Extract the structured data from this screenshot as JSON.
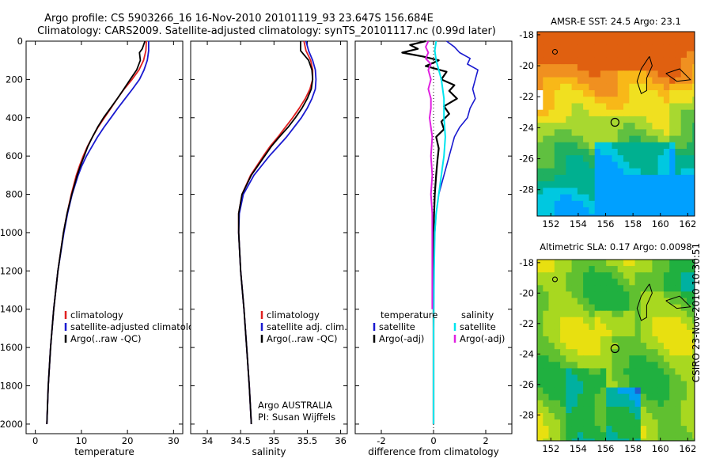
{
  "title_line1": "Argo profile: CS 5903266_16 16-Nov-2010 20101119_93 23.647S 156.684E",
  "title_line2": "Climatology: CARS2009. Satellite-adjusted climatology: synTS_20101117.nc (0.99d later)",
  "side_stamp": "CSIRO 23-Nov-2010 10:30:51",
  "colors": {
    "climatology": "#e02020",
    "satellite": "#1a1ad0",
    "argo": "#000000",
    "satellite_diff": "#00e5ee",
    "argo_diff": "#e020e0",
    "land": "#f6c08c",
    "coast": "#000000"
  },
  "chart_data": [
    {
      "type": "line",
      "name": "temperature-panel",
      "xlabel": "temperature",
      "ylabel": "",
      "xlim": [
        -2,
        32
      ],
      "ylim": [
        2050,
        0
      ],
      "xticks": [
        0,
        10,
        20,
        30
      ],
      "yticks": [
        0,
        200,
        400,
        600,
        800,
        1000,
        1200,
        1400,
        1600,
        1800,
        2000
      ],
      "legend": [
        "climatology",
        "satellite-adjusted climatology",
        "Argo(..raw -QC)"
      ],
      "legend_position": "lower-middle",
      "series": [
        {
          "name": "climatology",
          "color_key": "climatology",
          "depth": [
            0,
            50,
            100,
            150,
            200,
            250,
            300,
            350,
            400,
            450,
            500,
            550,
            600,
            650,
            700,
            800,
            900,
            1000,
            1200,
            1400,
            1600,
            1800,
            2000
          ],
          "values": [
            24.1,
            24.0,
            23.5,
            22.5,
            21.0,
            19.3,
            17.8,
            16.4,
            15.0,
            13.6,
            12.4,
            11.3,
            10.4,
            9.6,
            8.9,
            7.8,
            6.9,
            6.1,
            4.9,
            4.0,
            3.3,
            2.8,
            2.5
          ]
        },
        {
          "name": "satellite-adjusted climatology",
          "color_key": "satellite",
          "depth": [
            0,
            50,
            100,
            150,
            200,
            250,
            300,
            350,
            400,
            450,
            500,
            550,
            600,
            650,
            700,
            800,
            900,
            1000,
            1200,
            1400,
            1600,
            1800,
            2000
          ],
          "values": [
            24.6,
            24.6,
            24.3,
            23.6,
            22.6,
            21.1,
            19.5,
            17.9,
            16.4,
            14.9,
            13.5,
            12.3,
            11.1,
            10.1,
            9.3,
            8.0,
            7.0,
            6.2,
            4.9,
            4.0,
            3.3,
            2.8,
            2.5
          ]
        },
        {
          "name": "Argo(..raw -QC)",
          "color_key": "argo",
          "depth": [
            0,
            40,
            60,
            100,
            150,
            200,
            250,
            300,
            350,
            400,
            450,
            500,
            550,
            600,
            650,
            700,
            800,
            900,
            1000,
            1200,
            1400,
            1600,
            1800,
            2000
          ],
          "values": [
            23.8,
            23.2,
            22.6,
            22.8,
            22.0,
            20.6,
            19.2,
            17.8,
            16.3,
            14.8,
            13.5,
            12.4,
            11.4,
            10.6,
            9.8,
            9.1,
            7.9,
            6.9,
            6.1,
            4.9,
            4.0,
            3.3,
            2.8,
            2.5
          ]
        }
      ]
    },
    {
      "type": "line",
      "name": "salinity-panel",
      "xlabel": "salinity",
      "ylabel": "",
      "xlim": [
        33.75,
        36.1
      ],
      "ylim": [
        2050,
        0
      ],
      "xticks": [
        34,
        34.5,
        35,
        35.5,
        36
      ],
      "legend": [
        "climatology",
        "satellite adj. clim.",
        "Argo(..raw -QC)"
      ],
      "legend_position": "lower-right",
      "annotation": [
        "Argo AUSTRALIA",
        "PI: Susan Wijffels"
      ],
      "series": [
        {
          "name": "climatology",
          "color_key": "climatology",
          "depth": [
            0,
            50,
            100,
            150,
            200,
            250,
            300,
            350,
            400,
            450,
            500,
            550,
            600,
            700,
            800,
            900,
            1000,
            1200,
            1400,
            1600,
            1800,
            2000
          ],
          "values": [
            35.45,
            35.48,
            35.55,
            35.58,
            35.58,
            35.54,
            35.47,
            35.38,
            35.28,
            35.17,
            35.06,
            34.94,
            34.84,
            34.65,
            34.52,
            34.47,
            34.47,
            34.5,
            34.55,
            34.59,
            34.63,
            34.66
          ]
        },
        {
          "name": "satellite adj. clim.",
          "color_key": "satellite",
          "depth": [
            0,
            50,
            100,
            150,
            200,
            250,
            300,
            350,
            400,
            450,
            500,
            550,
            600,
            700,
            800,
            900,
            1000,
            1200,
            1400,
            1600,
            1800,
            2000
          ],
          "values": [
            35.48,
            35.52,
            35.58,
            35.62,
            35.63,
            35.62,
            35.57,
            35.5,
            35.41,
            35.3,
            35.19,
            35.06,
            34.93,
            34.7,
            34.54,
            34.48,
            34.47,
            34.5,
            34.55,
            34.59,
            34.63,
            34.66
          ]
        },
        {
          "name": "Argo(..raw -QC)",
          "color_key": "argo",
          "depth": [
            0,
            50,
            100,
            150,
            200,
            250,
            300,
            350,
            400,
            450,
            500,
            550,
            600,
            700,
            800,
            900,
            1000,
            1200,
            1400,
            1600,
            1800,
            2000
          ],
          "values": [
            35.4,
            35.4,
            35.52,
            35.57,
            35.58,
            35.56,
            35.5,
            35.42,
            35.32,
            35.21,
            35.08,
            34.96,
            34.86,
            34.66,
            34.52,
            34.47,
            34.47,
            34.5,
            34.55,
            34.59,
            34.63,
            34.66
          ]
        }
      ]
    },
    {
      "type": "line",
      "name": "difference-panel",
      "xlabel": "difference from climatology",
      "ylabel": "",
      "xlim": [
        -3,
        3
      ],
      "ylim": [
        2050,
        0
      ],
      "xticks": [
        -2,
        0,
        2
      ],
      "legend_temperature": {
        "title": "temperature",
        "items": [
          "satellite",
          "Argo(-adj)"
        ]
      },
      "legend_salinity": {
        "title": "salinity",
        "items": [
          "satellite",
          "Argo(-adj)"
        ]
      },
      "series": [
        {
          "name": "temperature satellite",
          "color_key": "satellite",
          "width": 1.6,
          "depth": [
            0,
            30,
            60,
            90,
            120,
            150,
            200,
            250,
            300,
            350,
            400,
            450,
            500,
            600,
            700,
            800,
            900,
            1000,
            1200,
            1500,
            2000
          ],
          "values": [
            0.5,
            0.8,
            1.0,
            1.4,
            1.3,
            1.7,
            1.6,
            1.5,
            1.6,
            1.4,
            1.3,
            1.0,
            0.8,
            0.6,
            0.4,
            0.2,
            0.1,
            0.05,
            0.0,
            0.0,
            0.0
          ]
        },
        {
          "name": "temperature Argo(-adj)",
          "color_key": "argo",
          "width": 2.2,
          "depth": [
            0,
            20,
            40,
            60,
            80,
            100,
            130,
            160,
            200,
            230,
            260,
            300,
            340,
            380,
            420,
            460,
            500,
            560,
            620,
            700,
            800,
            900,
            1000,
            1200,
            1500,
            2000
          ],
          "values": [
            -0.3,
            -0.9,
            -0.6,
            -1.2,
            -0.4,
            0.2,
            -0.3,
            0.5,
            0.3,
            0.8,
            0.6,
            0.9,
            0.4,
            0.6,
            0.3,
            0.4,
            0.1,
            0.2,
            0.15,
            0.1,
            0.05,
            0.02,
            0.0,
            0.0,
            0.0,
            0.0
          ]
        },
        {
          "name": "salinity satellite",
          "color_key": "satellite_diff",
          "width": 2,
          "depth": [
            0,
            50,
            100,
            150,
            200,
            300,
            400,
            500,
            600,
            650,
            700,
            800,
            900,
            1000,
            1200,
            1500,
            2000
          ],
          "values": [
            0.1,
            0.05,
            0.1,
            0.2,
            0.3,
            0.4,
            0.4,
            0.45,
            0.4,
            0.35,
            0.3,
            0.2,
            0.1,
            0.05,
            0.02,
            0.0,
            0.0
          ]
        },
        {
          "name": "salinity Argo(-adj)",
          "color_key": "argo_diff",
          "width": 2,
          "depth": [
            0,
            30,
            60,
            90,
            120,
            150,
            200,
            250,
            300,
            350,
            400,
            500,
            600,
            700,
            800,
            900,
            1000,
            1200,
            1400
          ],
          "values": [
            -0.2,
            -0.3,
            -0.2,
            -0.3,
            -0.1,
            -0.2,
            -0.1,
            -0.2,
            -0.1,
            -0.1,
            -0.15,
            -0.05,
            -0.1,
            -0.05,
            -0.1,
            -0.05,
            -0.05,
            -0.05,
            -0.05
          ]
        }
      ]
    },
    {
      "type": "heatmap",
      "name": "sst-map",
      "title": "AMSR-E SST: 24.5 Argo: 23.1",
      "xlim": [
        151,
        162.5
      ],
      "ylim": [
        -29.7,
        -17.8
      ],
      "xticks": [
        152,
        154,
        156,
        158,
        160,
        162
      ],
      "yticks": [
        -18,
        -20,
        -22,
        -24,
        -26,
        -28
      ],
      "argo_position": {
        "lon": 156.684,
        "lat": -23.647
      },
      "colormap": [
        "#00a0ff",
        "#00c8e0",
        "#00b090",
        "#20b060",
        "#60c040",
        "#a8d830",
        "#f0e020",
        "#f8b818",
        "#f09020",
        "#e06010"
      ]
    },
    {
      "type": "heatmap",
      "name": "sla-map",
      "title": "Altimetric SLA: 0.17 Argo: 0.0098",
      "xlim": [
        151,
        162.5
      ],
      "ylim": [
        -29.7,
        -17.8
      ],
      "xticks": [
        152,
        154,
        156,
        158,
        160,
        162
      ],
      "yticks": [
        -18,
        -20,
        -22,
        -24,
        -26,
        -28
      ],
      "argo_position": {
        "lon": 156.684,
        "lat": -23.647
      },
      "colormap": [
        "#1e60d0",
        "#00a0f0",
        "#00b0a0",
        "#20b040",
        "#60c030",
        "#a8d820",
        "#e8e010",
        "#f8c010",
        "#f09020"
      ]
    }
  ]
}
